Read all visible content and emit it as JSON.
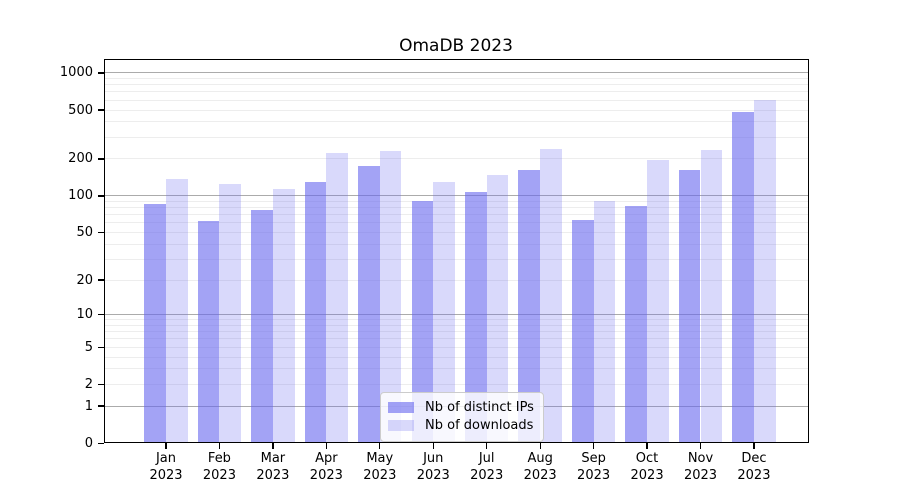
{
  "chart_data": {
    "type": "bar",
    "title": "OmaDB 2023",
    "categories": [
      "Jan 2023",
      "Feb 2023",
      "Mar 2023",
      "Apr 2023",
      "May 2023",
      "Jun 2023",
      "Jul 2023",
      "Aug 2023",
      "Sep 2023",
      "Oct 2023",
      "Nov 2023",
      "Dec 2023"
    ],
    "series": [
      {
        "name": "Nb of distinct IPs",
        "color": "rgba(102,102,238,0.60)",
        "values": [
          85,
          62,
          76,
          131,
          174,
          90,
          107,
          164,
          63,
          82,
          162,
          480
        ]
      },
      {
        "name": "Nb of downloads",
        "color": "rgba(102,102,238,0.25)",
        "values": [
          137,
          124,
          113,
          223,
          234,
          129,
          149,
          240,
          91,
          196,
          236,
          598
        ]
      }
    ],
    "yscale": "log1p",
    "yticks": [
      0,
      1,
      2,
      5,
      10,
      20,
      50,
      100,
      200,
      500,
      1000
    ],
    "ylim": [
      0,
      1286
    ],
    "xlabel": "",
    "ylabel": "",
    "grid": "horizontal",
    "legend": {
      "labels": [
        "Nb of distinct IPs",
        "Nb of downloads"
      ],
      "position": "lower center"
    }
  },
  "style": {
    "bar_base_color": "#6666ee",
    "major_grid_color": "#ababab",
    "minor_grid_color": "#ededed",
    "axis_color": "#000000",
    "background": "#ffffff",
    "legend_border_color": "#cccccc"
  }
}
